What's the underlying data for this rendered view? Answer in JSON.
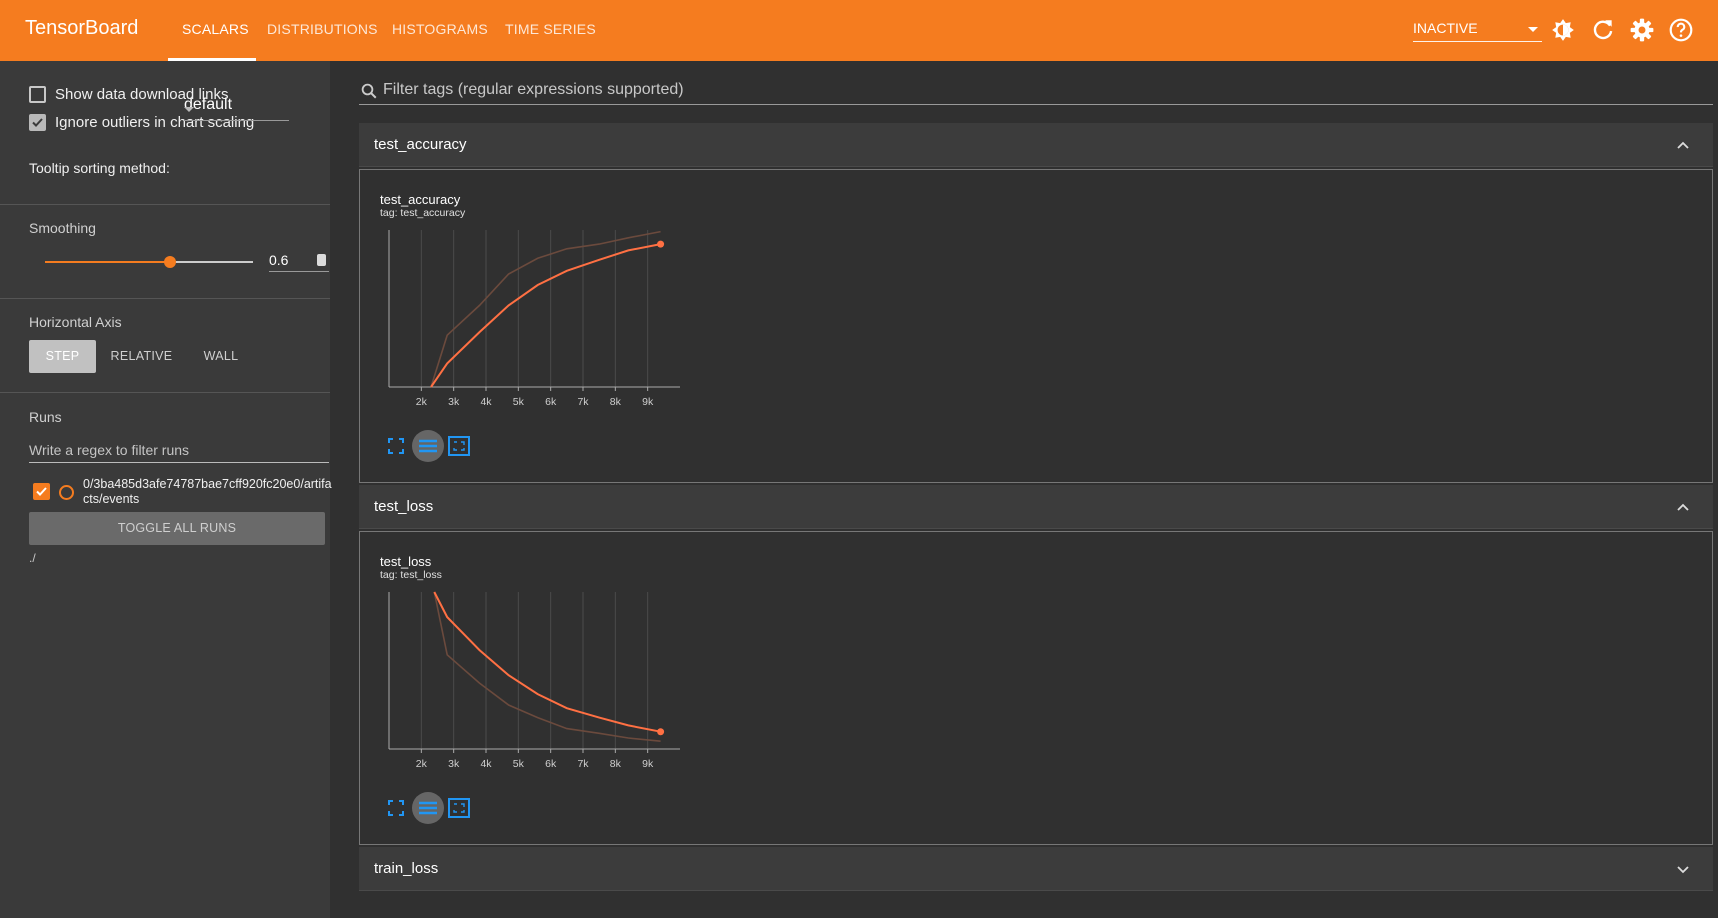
{
  "header": {
    "brand": "TensorBoard",
    "tabs": [
      "SCALARS",
      "DISTRIBUTIONS",
      "HISTOGRAMS",
      "TIME SERIES"
    ],
    "active_tab": "SCALARS",
    "reload_status": "INACTIVE",
    "icons": [
      "theme-toggle-icon",
      "refresh-icon",
      "settings-icon",
      "help-icon"
    ]
  },
  "sidebar": {
    "show_download_links": {
      "label": "Show data download links",
      "checked": false
    },
    "ignore_outliers": {
      "label": "Ignore outliers in chart scaling",
      "checked": true
    },
    "tooltip_sorting": {
      "label": "Tooltip sorting method:",
      "value": "default"
    },
    "smoothing": {
      "label": "Smoothing",
      "value": "0.6",
      "level": 0.6
    },
    "horizontal_axis": {
      "label": "Horizontal Axis",
      "options": [
        "STEP",
        "RELATIVE",
        "WALL"
      ],
      "selected": "STEP"
    },
    "runs": {
      "label": "Runs",
      "filter_placeholder": "Write a regex to filter runs",
      "items": [
        {
          "name": "0/3ba485d3afe74787bae7cff920fc20e0/artifacts/events",
          "checked": true
        }
      ],
      "toggle_label": "TOGGLE ALL RUNS",
      "path": "./"
    }
  },
  "main": {
    "filter_placeholder": "Filter tags (regular expressions supported)",
    "groups": [
      {
        "name": "test_accuracy",
        "expanded": true,
        "card": {
          "title": "test_accuracy",
          "tag": "tag: test_accuracy"
        }
      },
      {
        "name": "test_loss",
        "expanded": true,
        "card": {
          "title": "test_loss",
          "tag": "tag: test_loss"
        }
      },
      {
        "name": "train_loss",
        "expanded": false
      }
    ]
  },
  "colors": {
    "accent": "#f57c1f",
    "background": "#303030",
    "sidebar": "#3a3a3a",
    "smoothed_line": "#ff7043",
    "raw_line": "#6b4a3d"
  },
  "chart_data": [
    {
      "type": "line",
      "title": "test_accuracy",
      "x_ticks": [
        "2k",
        "3k",
        "4k",
        "5k",
        "6k",
        "7k",
        "8k",
        "9k"
      ],
      "xlim": [
        1000,
        10000
      ],
      "ylim": [
        0,
        1
      ],
      "grid": true,
      "series": [
        {
          "name": "",
          "style": "raw",
          "x": [
            2300,
            2800,
            3800,
            4700,
            5600,
            6500,
            7500,
            8400,
            9400
          ],
          "y": [
            0.0,
            0.33,
            0.52,
            0.72,
            0.82,
            0.88,
            0.91,
            0.95,
            0.99
          ]
        },
        {
          "name": "",
          "style": "smoothed",
          "x": [
            2300,
            2800,
            3800,
            4700,
            5600,
            6500,
            7500,
            8400,
            9400
          ],
          "y": [
            0.0,
            0.15,
            0.35,
            0.52,
            0.65,
            0.74,
            0.81,
            0.87,
            0.91
          ]
        }
      ]
    },
    {
      "type": "line",
      "title": "test_loss",
      "x_ticks": [
        "2k",
        "3k",
        "4k",
        "5k",
        "6k",
        "7k",
        "8k",
        "9k"
      ],
      "xlim": [
        1000,
        10000
      ],
      "ylim": [
        0,
        1
      ],
      "grid": true,
      "series": [
        {
          "name": "",
          "style": "raw",
          "x": [
            2400,
            2800,
            3800,
            4700,
            5600,
            6500,
            7500,
            8400,
            9400
          ],
          "y": [
            1.0,
            0.6,
            0.42,
            0.28,
            0.2,
            0.13,
            0.1,
            0.07,
            0.05
          ]
        },
        {
          "name": "",
          "style": "smoothed",
          "x": [
            2400,
            2800,
            3800,
            4700,
            5600,
            6500,
            7500,
            8400,
            9400
          ],
          "y": [
            1.0,
            0.84,
            0.63,
            0.47,
            0.35,
            0.26,
            0.2,
            0.15,
            0.11
          ]
        }
      ]
    }
  ]
}
